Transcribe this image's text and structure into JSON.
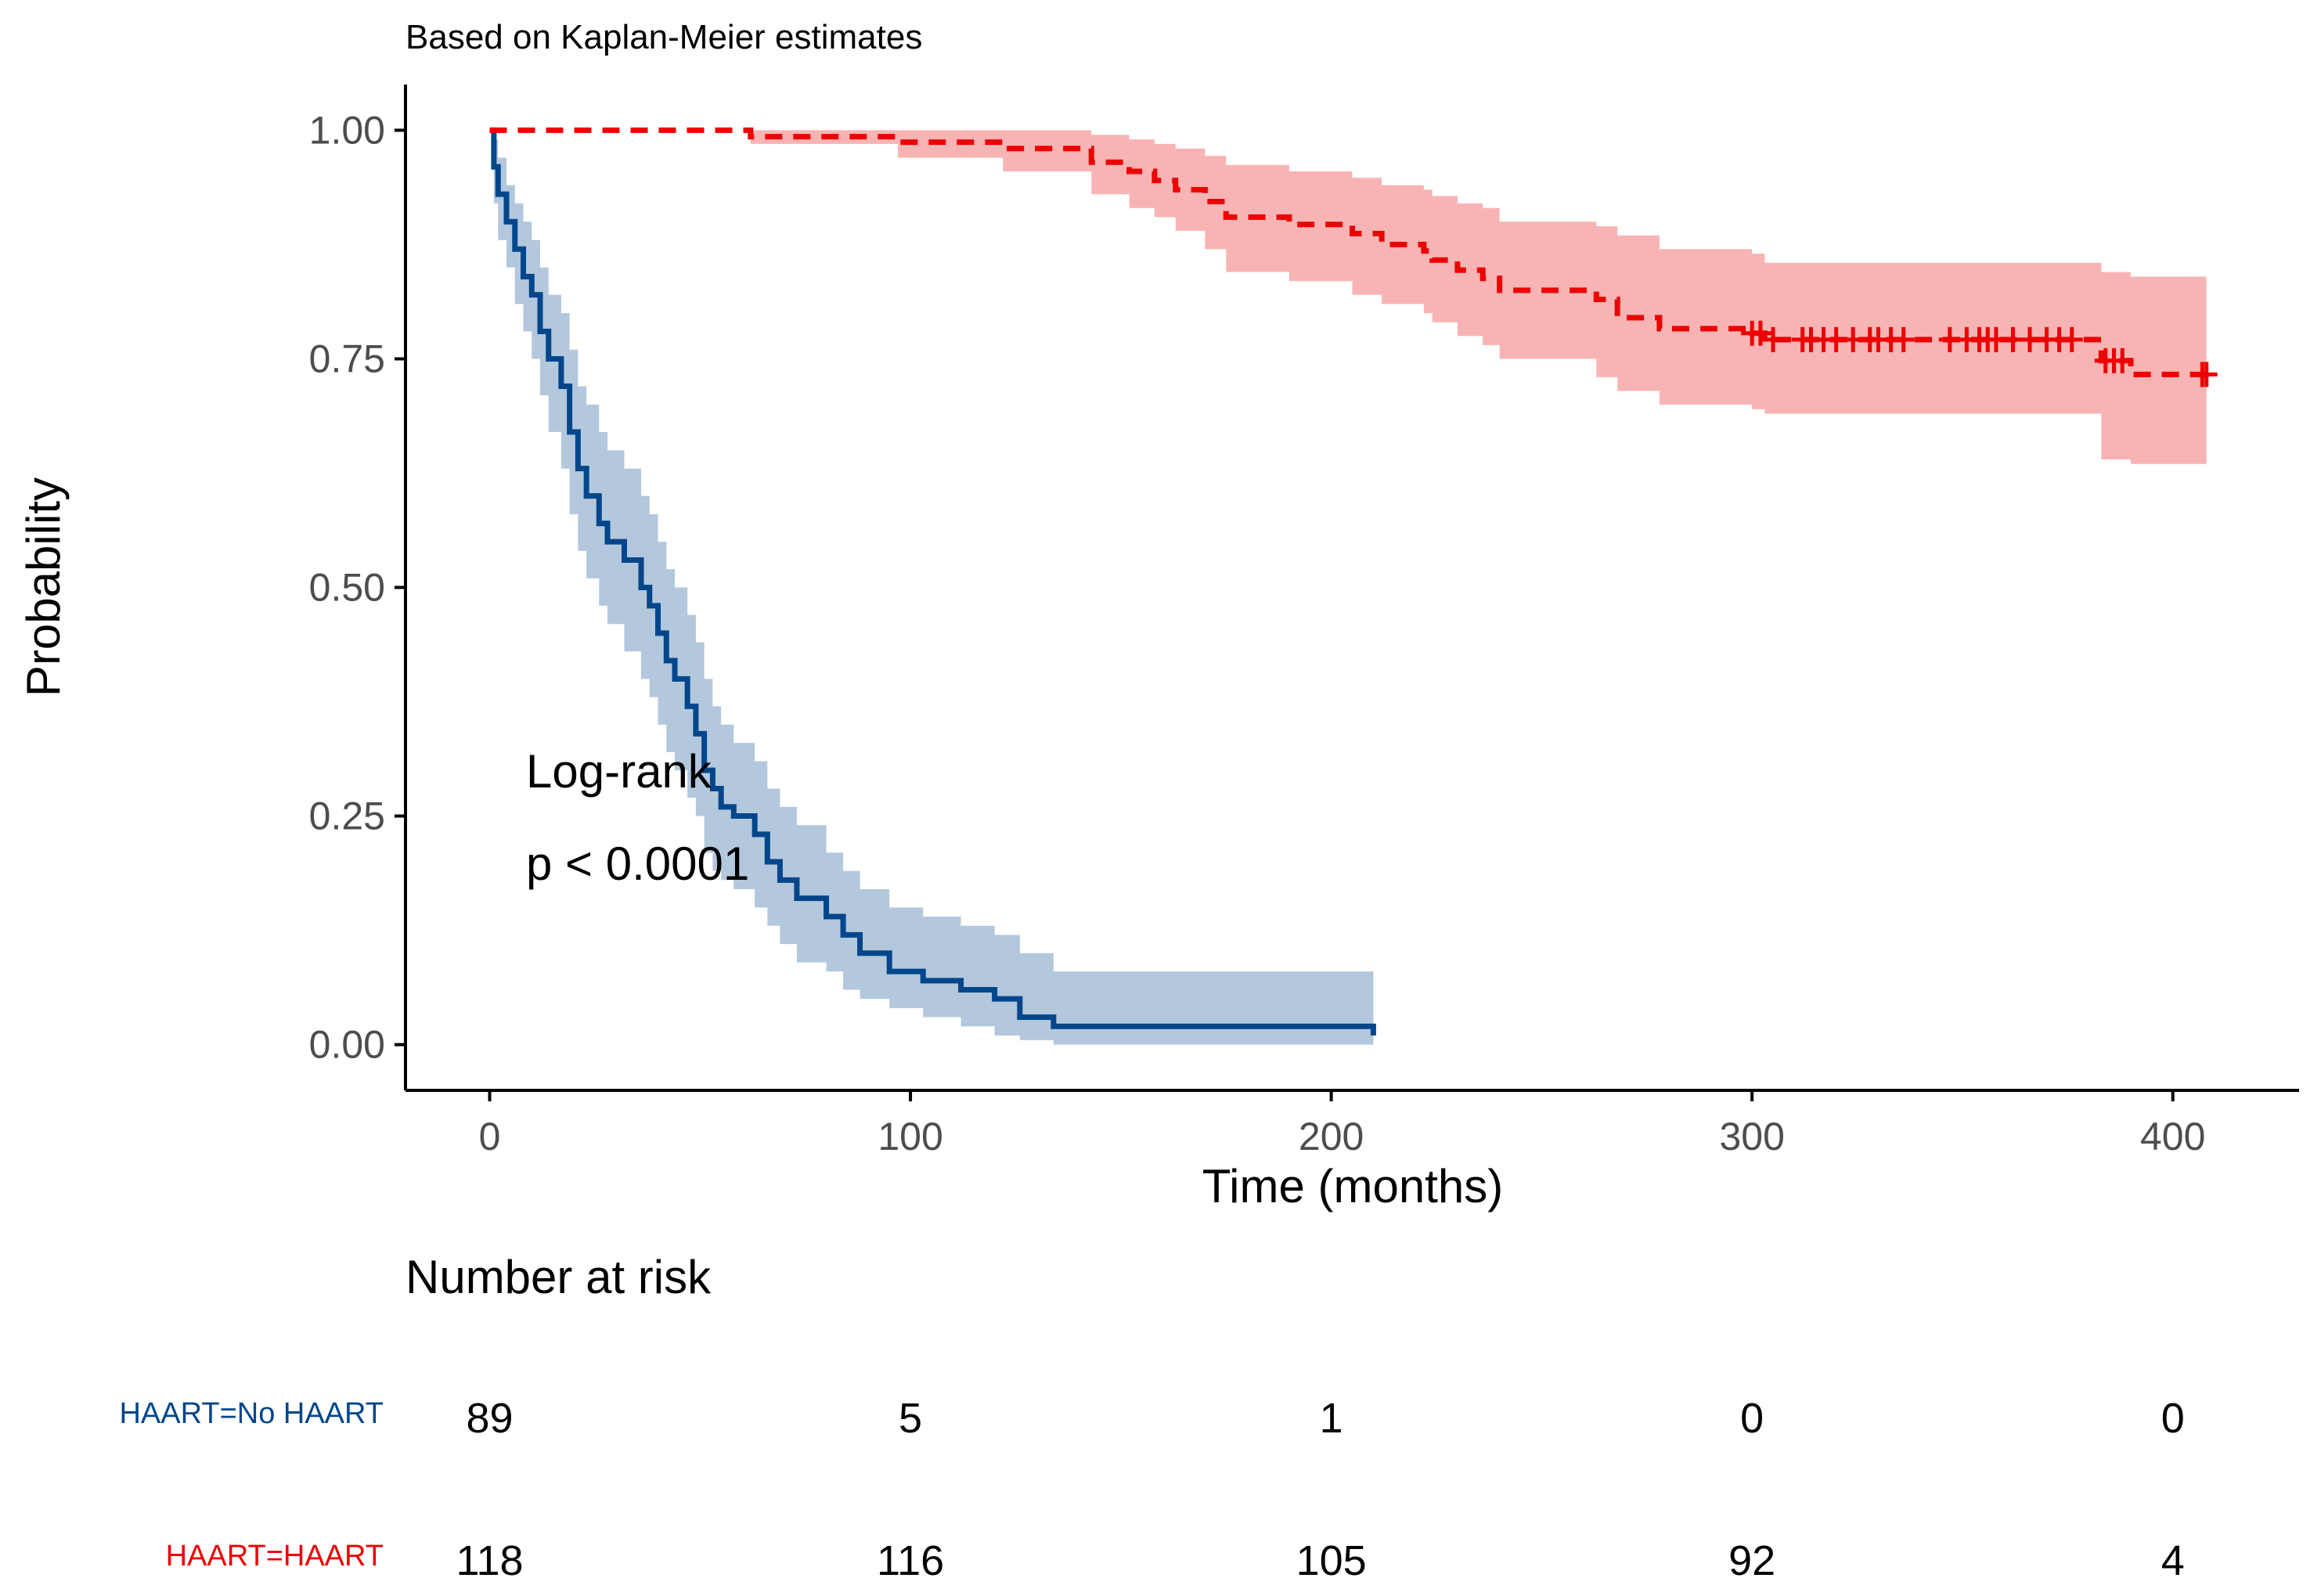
{
  "chart_data": {
    "type": "line",
    "subtitle": "Based on Kaplan-Meier estimates",
    "xlabel": "Time (months)",
    "ylabel": "Probability",
    "xlim": [
      -20,
      430
    ],
    "ylim": [
      -0.05,
      1.05
    ],
    "x_ticks": [
      0,
      100,
      200,
      300,
      400
    ],
    "x_tick_labels": [
      "0",
      "100",
      "200",
      "300",
      "400"
    ],
    "y_ticks": [
      0,
      0.25,
      0.5,
      0.75,
      1
    ],
    "y_tick_labels": [
      "0.00",
      "0.25",
      "0.50",
      "0.75",
      "1.00"
    ],
    "grid": false,
    "annotation": [
      "Log-rank",
      "p < 0.0001"
    ],
    "series": [
      {
        "name": "HAART=No HAART",
        "color": "#00468B",
        "band_color": "#B3C7DD",
        "line_style": "solid",
        "steps": [
          [
            0,
            1
          ],
          [
            1,
            0.96
          ],
          [
            2,
            0.93
          ],
          [
            4,
            0.9
          ],
          [
            6,
            0.87
          ],
          [
            8,
            0.84
          ],
          [
            10,
            0.82
          ],
          [
            12,
            0.78
          ],
          [
            14,
            0.75
          ],
          [
            17,
            0.72
          ],
          [
            19,
            0.67
          ],
          [
            21,
            0.63
          ],
          [
            23,
            0.6
          ],
          [
            26,
            0.57
          ],
          [
            28,
            0.55
          ],
          [
            32,
            0.53
          ],
          [
            36,
            0.5
          ],
          [
            38,
            0.48
          ],
          [
            40,
            0.45
          ],
          [
            42,
            0.42
          ],
          [
            44,
            0.4
          ],
          [
            47,
            0.37
          ],
          [
            49,
            0.34
          ],
          [
            51,
            0.3
          ],
          [
            53,
            0.28
          ],
          [
            55,
            0.26
          ],
          [
            58,
            0.25
          ],
          [
            63,
            0.23
          ],
          [
            66,
            0.2
          ],
          [
            69,
            0.18
          ],
          [
            73,
            0.16
          ],
          [
            80,
            0.14
          ],
          [
            84,
            0.12
          ],
          [
            88,
            0.1
          ],
          [
            95,
            0.08
          ],
          [
            103,
            0.07
          ],
          [
            112,
            0.06
          ],
          [
            120,
            0.05
          ],
          [
            126,
            0.03
          ],
          [
            134,
            0.02
          ],
          [
            210,
            0.01
          ]
        ],
        "upper": [
          [
            0,
            1
          ],
          [
            1,
            0.99
          ],
          [
            2,
            0.97
          ],
          [
            4,
            0.94
          ],
          [
            6,
            0.92
          ],
          [
            8,
            0.9
          ],
          [
            10,
            0.88
          ],
          [
            12,
            0.85
          ],
          [
            14,
            0.82
          ],
          [
            17,
            0.8
          ],
          [
            19,
            0.76
          ],
          [
            21,
            0.72
          ],
          [
            23,
            0.7
          ],
          [
            26,
            0.67
          ],
          [
            28,
            0.65
          ],
          [
            32,
            0.63
          ],
          [
            36,
            0.6
          ],
          [
            38,
            0.58
          ],
          [
            40,
            0.55
          ],
          [
            42,
            0.52
          ],
          [
            44,
            0.5
          ],
          [
            47,
            0.47
          ],
          [
            49,
            0.44
          ],
          [
            51,
            0.4
          ],
          [
            53,
            0.37
          ],
          [
            55,
            0.35
          ],
          [
            58,
            0.33
          ],
          [
            63,
            0.31
          ],
          [
            66,
            0.28
          ],
          [
            69,
            0.26
          ],
          [
            73,
            0.24
          ],
          [
            80,
            0.21
          ],
          [
            84,
            0.19
          ],
          [
            88,
            0.17
          ],
          [
            95,
            0.15
          ],
          [
            103,
            0.14
          ],
          [
            112,
            0.13
          ],
          [
            120,
            0.12
          ],
          [
            126,
            0.1
          ],
          [
            134,
            0.08
          ],
          [
            210,
            0.08
          ]
        ],
        "lower": [
          [
            0,
            1
          ],
          [
            1,
            0.92
          ],
          [
            2,
            0.88
          ],
          [
            4,
            0.85
          ],
          [
            6,
            0.81
          ],
          [
            8,
            0.78
          ],
          [
            10,
            0.75
          ],
          [
            12,
            0.71
          ],
          [
            14,
            0.67
          ],
          [
            17,
            0.63
          ],
          [
            19,
            0.58
          ],
          [
            21,
            0.54
          ],
          [
            23,
            0.51
          ],
          [
            26,
            0.48
          ],
          [
            28,
            0.46
          ],
          [
            32,
            0.43
          ],
          [
            36,
            0.4
          ],
          [
            38,
            0.38
          ],
          [
            40,
            0.35
          ],
          [
            42,
            0.32
          ],
          [
            44,
            0.3
          ],
          [
            47,
            0.27
          ],
          [
            49,
            0.25
          ],
          [
            51,
            0.21
          ],
          [
            53,
            0.19
          ],
          [
            55,
            0.18
          ],
          [
            58,
            0.17
          ],
          [
            63,
            0.15
          ],
          [
            66,
            0.13
          ],
          [
            69,
            0.11
          ],
          [
            73,
            0.09
          ],
          [
            80,
            0.08
          ],
          [
            84,
            0.06
          ],
          [
            88,
            0.05
          ],
          [
            95,
            0.04
          ],
          [
            103,
            0.03
          ],
          [
            112,
            0.02
          ],
          [
            120,
            0.01
          ],
          [
            126,
            0.005
          ],
          [
            134,
            0.0
          ],
          [
            210,
            0.0
          ]
        ],
        "end_x": 210
      },
      {
        "name": "HAART=HAART",
        "color": "#ED0000",
        "band_color": "#F8B4B4",
        "line_style": "dashed",
        "steps": [
          [
            0,
            1
          ],
          [
            62,
            0.993
          ],
          [
            97,
            0.987
          ],
          [
            122,
            0.98
          ],
          [
            143,
            0.965
          ],
          [
            152,
            0.955
          ],
          [
            158,
            0.945
          ],
          [
            163,
            0.935
          ],
          [
            170,
            0.922
          ],
          [
            175,
            0.905
          ],
          [
            190,
            0.897
          ],
          [
            205,
            0.887
          ],
          [
            212,
            0.875
          ],
          [
            222,
            0.868
          ],
          [
            224,
            0.858
          ],
          [
            230,
            0.847
          ],
          [
            236,
            0.838
          ],
          [
            240,
            0.825
          ],
          [
            263,
            0.815
          ],
          [
            268,
            0.795
          ],
          [
            278,
            0.783
          ],
          [
            300,
            0.778
          ],
          [
            303,
            0.771
          ],
          [
            383,
            0.748
          ],
          [
            390,
            0.733
          ]
        ],
        "upper": [
          [
            0,
            1
          ],
          [
            62,
            1.0
          ],
          [
            97,
            1.0
          ],
          [
            122,
            1.0
          ],
          [
            143,
            0.995
          ],
          [
            152,
            0.99
          ],
          [
            158,
            0.985
          ],
          [
            163,
            0.98
          ],
          [
            170,
            0.972
          ],
          [
            175,
            0.962
          ],
          [
            190,
            0.955
          ],
          [
            205,
            0.948
          ],
          [
            212,
            0.94
          ],
          [
            222,
            0.935
          ],
          [
            224,
            0.928
          ],
          [
            230,
            0.92
          ],
          [
            236,
            0.915
          ],
          [
            240,
            0.9
          ],
          [
            263,
            0.895
          ],
          [
            268,
            0.885
          ],
          [
            278,
            0.87
          ],
          [
            300,
            0.865
          ],
          [
            303,
            0.855
          ],
          [
            383,
            0.845
          ],
          [
            390,
            0.84
          ]
        ],
        "lower": [
          [
            0,
            1
          ],
          [
            62,
            0.985
          ],
          [
            97,
            0.97
          ],
          [
            122,
            0.955
          ],
          [
            143,
            0.93
          ],
          [
            152,
            0.915
          ],
          [
            158,
            0.905
          ],
          [
            163,
            0.89
          ],
          [
            170,
            0.87
          ],
          [
            175,
            0.845
          ],
          [
            190,
            0.835
          ],
          [
            205,
            0.82
          ],
          [
            212,
            0.81
          ],
          [
            222,
            0.8
          ],
          [
            224,
            0.79
          ],
          [
            230,
            0.775
          ],
          [
            236,
            0.765
          ],
          [
            240,
            0.75
          ],
          [
            263,
            0.73
          ],
          [
            268,
            0.715
          ],
          [
            278,
            0.7
          ],
          [
            300,
            0.695
          ],
          [
            303,
            0.69
          ],
          [
            383,
            0.64
          ],
          [
            390,
            0.635
          ]
        ],
        "end_x": 408,
        "censor_x": [
          300,
          302,
          305,
          312,
          314,
          317,
          320,
          324,
          328,
          330,
          333,
          336,
          347,
          351,
          354,
          356,
          358,
          362,
          366,
          370,
          373,
          376,
          384,
          386,
          388,
          407,
          408
        ]
      }
    ],
    "risk_table": {
      "title": "Number at risk",
      "times": [
        0,
        100,
        200,
        300,
        400
      ],
      "rows": [
        {
          "label": "HAART=No HAART",
          "color": "#00468B",
          "values": [
            "89",
            "5",
            "1",
            "0",
            "0"
          ]
        },
        {
          "label": "HAART=HAART",
          "color": "#ED0000",
          "values": [
            "118",
            "116",
            "105",
            "92",
            "4"
          ]
        }
      ]
    }
  }
}
